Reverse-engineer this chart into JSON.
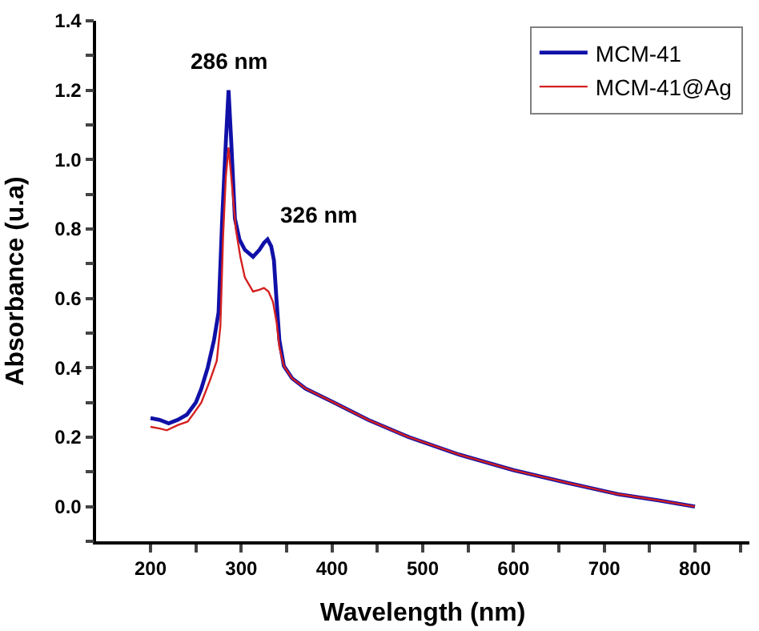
{
  "chart_data": {
    "type": "line",
    "xlabel": "Wavelength (nm)",
    "ylabel": "Absorbance (u.a)",
    "xlim": [
      140,
      860
    ],
    "xticks": [
      200,
      {
        "value": 250,
        "label": null
      },
      300,
      {
        "value": 350,
        "label": null
      },
      400,
      {
        "value": 450,
        "label": null
      },
      500,
      {
        "value": 550,
        "label": null
      },
      600,
      {
        "value": 650,
        "label": null
      },
      700,
      {
        "value": 750,
        "label": null
      },
      800,
      {
        "value": 850,
        "label": null
      }
    ],
    "ylim": [
      -0.1,
      1.4
    ],
    "yticks": [
      {
        "value": -0.1,
        "label": null
      },
      "0.0",
      {
        "value": 0.1,
        "label": null
      },
      0.2,
      {
        "value": 0.3,
        "label": null
      },
      0.4,
      {
        "value": 0.5,
        "label": null
      },
      0.6,
      {
        "value": 0.7,
        "label": null
      },
      0.8,
      {
        "value": 0.9,
        "label": null
      },
      "1.0",
      {
        "value": 1.1,
        "label": null
      },
      1.2,
      {
        "value": 1.3,
        "label": null
      },
      1.4
    ],
    "series": [
      {
        "name": "MCM-41",
        "color": "#1010a8",
        "x": [
          200,
          210,
          220,
          230,
          240,
          250,
          256,
          263,
          270,
          275,
          279,
          283,
          286,
          289,
          293,
          298,
          304,
          313,
          320,
          325,
          329,
          333,
          336,
          339,
          342,
          347,
          356,
          371,
          402,
          440,
          485,
          540,
          600,
          660,
          715,
          760,
          800
        ],
        "values": [
          0.255,
          0.25,
          0.24,
          0.25,
          0.265,
          0.3,
          0.34,
          0.4,
          0.48,
          0.56,
          0.83,
          1.05,
          1.2,
          1.05,
          0.83,
          0.77,
          0.74,
          0.72,
          0.74,
          0.76,
          0.77,
          0.75,
          0.71,
          0.59,
          0.48,
          0.405,
          0.37,
          0.34,
          0.3,
          0.25,
          0.2,
          0.15,
          0.105,
          0.068,
          0.036,
          0.018,
          0.0
        ]
      },
      {
        "name": "MCM-41@Ag",
        "color": "#d42020",
        "x": [
          200,
          210,
          218,
          230,
          241,
          248,
          256,
          265,
          273,
          277,
          280,
          283,
          286,
          289,
          294,
          299,
          304,
          313,
          320,
          325,
          330,
          335,
          339,
          342,
          347,
          356,
          371,
          402,
          440,
          485,
          540,
          600,
          660,
          715,
          760,
          800
        ],
        "values": [
          0.23,
          0.225,
          0.22,
          0.235,
          0.245,
          0.27,
          0.3,
          0.36,
          0.42,
          0.52,
          0.78,
          0.95,
          1.035,
          0.95,
          0.8,
          0.72,
          0.66,
          0.62,
          0.625,
          0.63,
          0.62,
          0.59,
          0.53,
          0.46,
          0.405,
          0.37,
          0.34,
          0.3,
          0.25,
          0.2,
          0.15,
          0.105,
          0.068,
          0.036,
          0.018,
          0.0
        ]
      }
    ],
    "annotations": [
      {
        "text": "286 nm",
        "x": 286,
        "y": 1.2
      },
      {
        "text": "326 nm",
        "x": 329,
        "y": 0.77
      }
    ],
    "legend": "top right",
    "marker": "none",
    "line_style": "solid"
  }
}
